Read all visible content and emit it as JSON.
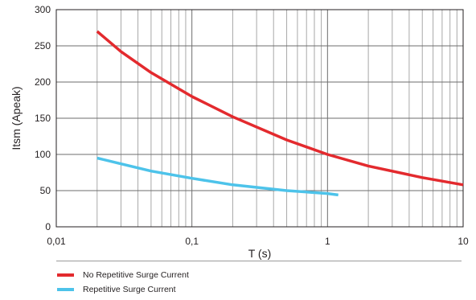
{
  "chart_data": {
    "type": "line",
    "xscale": "log",
    "xlim": [
      0.01,
      10
    ],
    "ylim": [
      0,
      300
    ],
    "xlabel": "T (s)",
    "ylabel": "Itsm (Apeak)",
    "xticks": [
      {
        "value": 0.01,
        "label": "0,01"
      },
      {
        "value": 0.1,
        "label": "0,1"
      },
      {
        "value": 1,
        "label": "1"
      },
      {
        "value": 10,
        "label": "10"
      }
    ],
    "yticks": [
      0,
      50,
      100,
      150,
      200,
      250,
      300
    ],
    "grid": true,
    "legend_position": "bottom",
    "series": [
      {
        "name": "No Repetitive Surge Current",
        "color": "#e32a2e",
        "x": [
          0.02,
          0.03,
          0.05,
          0.1,
          0.2,
          0.5,
          1,
          2,
          5,
          10
        ],
        "y": [
          270,
          242,
          213,
          180,
          152,
          120,
          100,
          84,
          68,
          58
        ]
      },
      {
        "name": "Repetitive Surge Current",
        "color": "#4dc3ea",
        "x": [
          0.02,
          0.03,
          0.05,
          0.1,
          0.2,
          0.5,
          1,
          1.2
        ],
        "y": [
          95,
          87,
          77,
          67,
          58,
          50,
          46,
          44
        ]
      }
    ]
  }
}
